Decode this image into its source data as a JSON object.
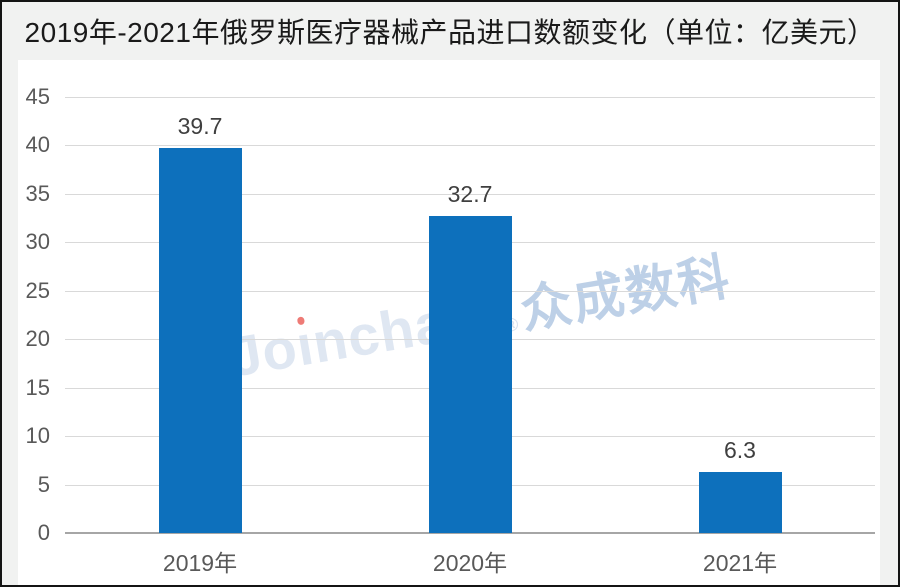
{
  "header": {
    "title": "2019年-2021年俄罗斯医疗器械产品进口数额变化（单位：亿美元）"
  },
  "watermark": {
    "brand": "Joinchain",
    "registered_mark": "®",
    "suffix": "众成数科",
    "brand_color": "#dfe7f2",
    "registered_color": "#d9e2ef",
    "suffix_color": "#bdd0e7",
    "i_dot_color": "#ee7b76"
  },
  "colors": {
    "bar": "#0d70bc",
    "title_text": "#1a1a1a",
    "band_background": "#f1f2f1",
    "frame_border": "#141414",
    "gridline": "#d9d9d9",
    "axis_line": "#a6a6a6",
    "axis_text": "#595959",
    "value_text": "#3f3f3f"
  },
  "chart_data": {
    "type": "bar",
    "title": "2019年-2021年俄罗斯医疗器械产品进口数额变化（单位：亿美元）",
    "categories": [
      "2019年",
      "2020年",
      "2021年"
    ],
    "values": [
      39.7,
      32.7,
      6.3
    ],
    "value_labels": [
      "39.7",
      "32.7",
      "6.3"
    ],
    "unit": "亿美元",
    "xlabel": "",
    "ylabel": "",
    "ylim": [
      0,
      45
    ],
    "yticks": [
      0,
      5,
      10,
      15,
      20,
      25,
      30,
      35,
      40,
      45
    ],
    "grid": true,
    "legend": "none",
    "bar_color": "#0d70bc"
  }
}
